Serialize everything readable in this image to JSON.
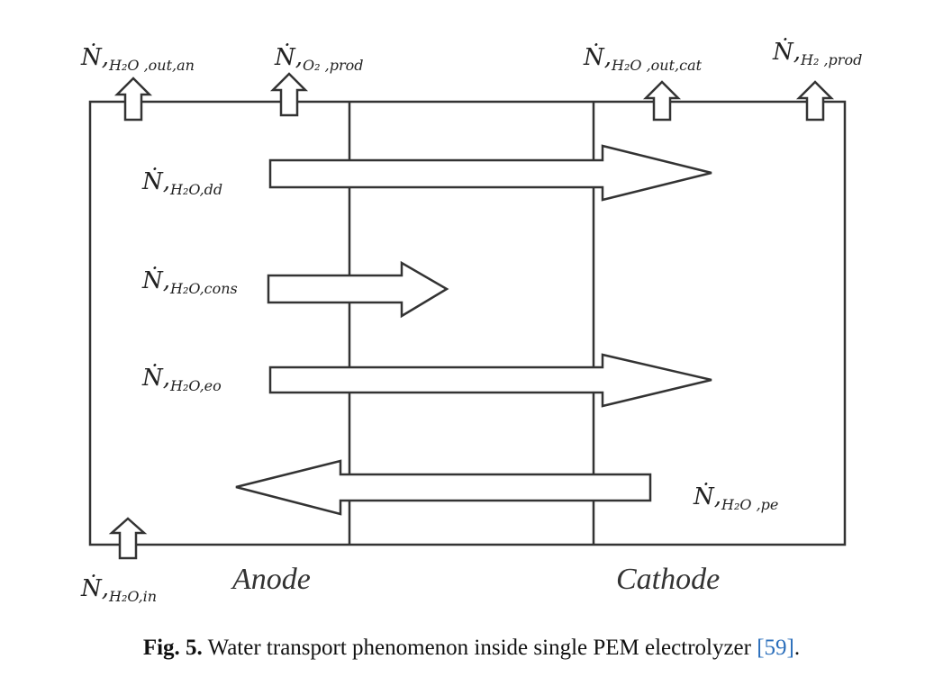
{
  "labels": {
    "h2o_out_an": {
      "main": "Ṅ,",
      "sub": "H₂O ,out,an"
    },
    "o2_prod": {
      "main": "Ṅ,",
      "sub": "O₂ ,prod"
    },
    "h2o_out_cat": {
      "main": "Ṅ,",
      "sub": "H₂O ,out,cat"
    },
    "h2_prod": {
      "main": "Ṅ,",
      "sub": "H₂ ,prod"
    },
    "h2o_dd": {
      "main": "Ṅ,",
      "sub": "H₂O,dd"
    },
    "h2o_cons": {
      "main": "Ṅ,",
      "sub": "H₂O,cons"
    },
    "h2o_eo": {
      "main": "Ṅ,",
      "sub": "H₂O,eo"
    },
    "h2o_pe": {
      "main": "Ṅ,",
      "sub": "H₂O ,pe"
    },
    "h2o_in": {
      "main": "Ṅ,",
      "sub": "H₂O,in"
    }
  },
  "regions": {
    "anode": "Anode",
    "cathode": "Cathode"
  },
  "caption": {
    "fig": "Fig. 5.",
    "text": " Water transport phenomenon inside single PEM electrolyzer ",
    "ref": "[59]",
    "end": "."
  }
}
